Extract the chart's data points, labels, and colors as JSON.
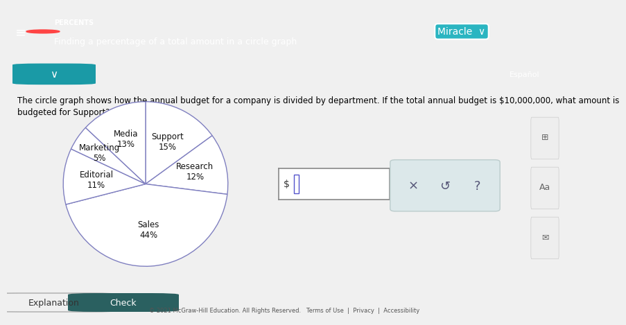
{
  "bg_color": "#f0f0f0",
  "header_color": "#2ab5c1",
  "content_bg": "#ffffff",
  "header_text": "PERCENTS",
  "header_subtitle": "Finding a percentage of a total amount in a circle graph",
  "question": "The circle graph shows how the annual budget for a company is divided by department. If the total annual budget is $10,000,000, what amount is\nbudgeted for Support?",
  "slices": [
    "Support",
    "Research",
    "Sales",
    "Editorial",
    "Marketing",
    "Media"
  ],
  "percentages": [
    15,
    12,
    44,
    11,
    5,
    13
  ],
  "slice_fill": "#ffffff",
  "edge_color": "#8080c0",
  "label_positions_r": [
    0.58,
    0.62,
    0.55,
    0.6,
    0.68,
    0.6
  ],
  "footer_bg": "#f0f0f0",
  "footer_text": "© 2021 McGraw-Hill Education. All Rights Reserved.   Terms of Use  |  Privacy  |  Accessibility"
}
